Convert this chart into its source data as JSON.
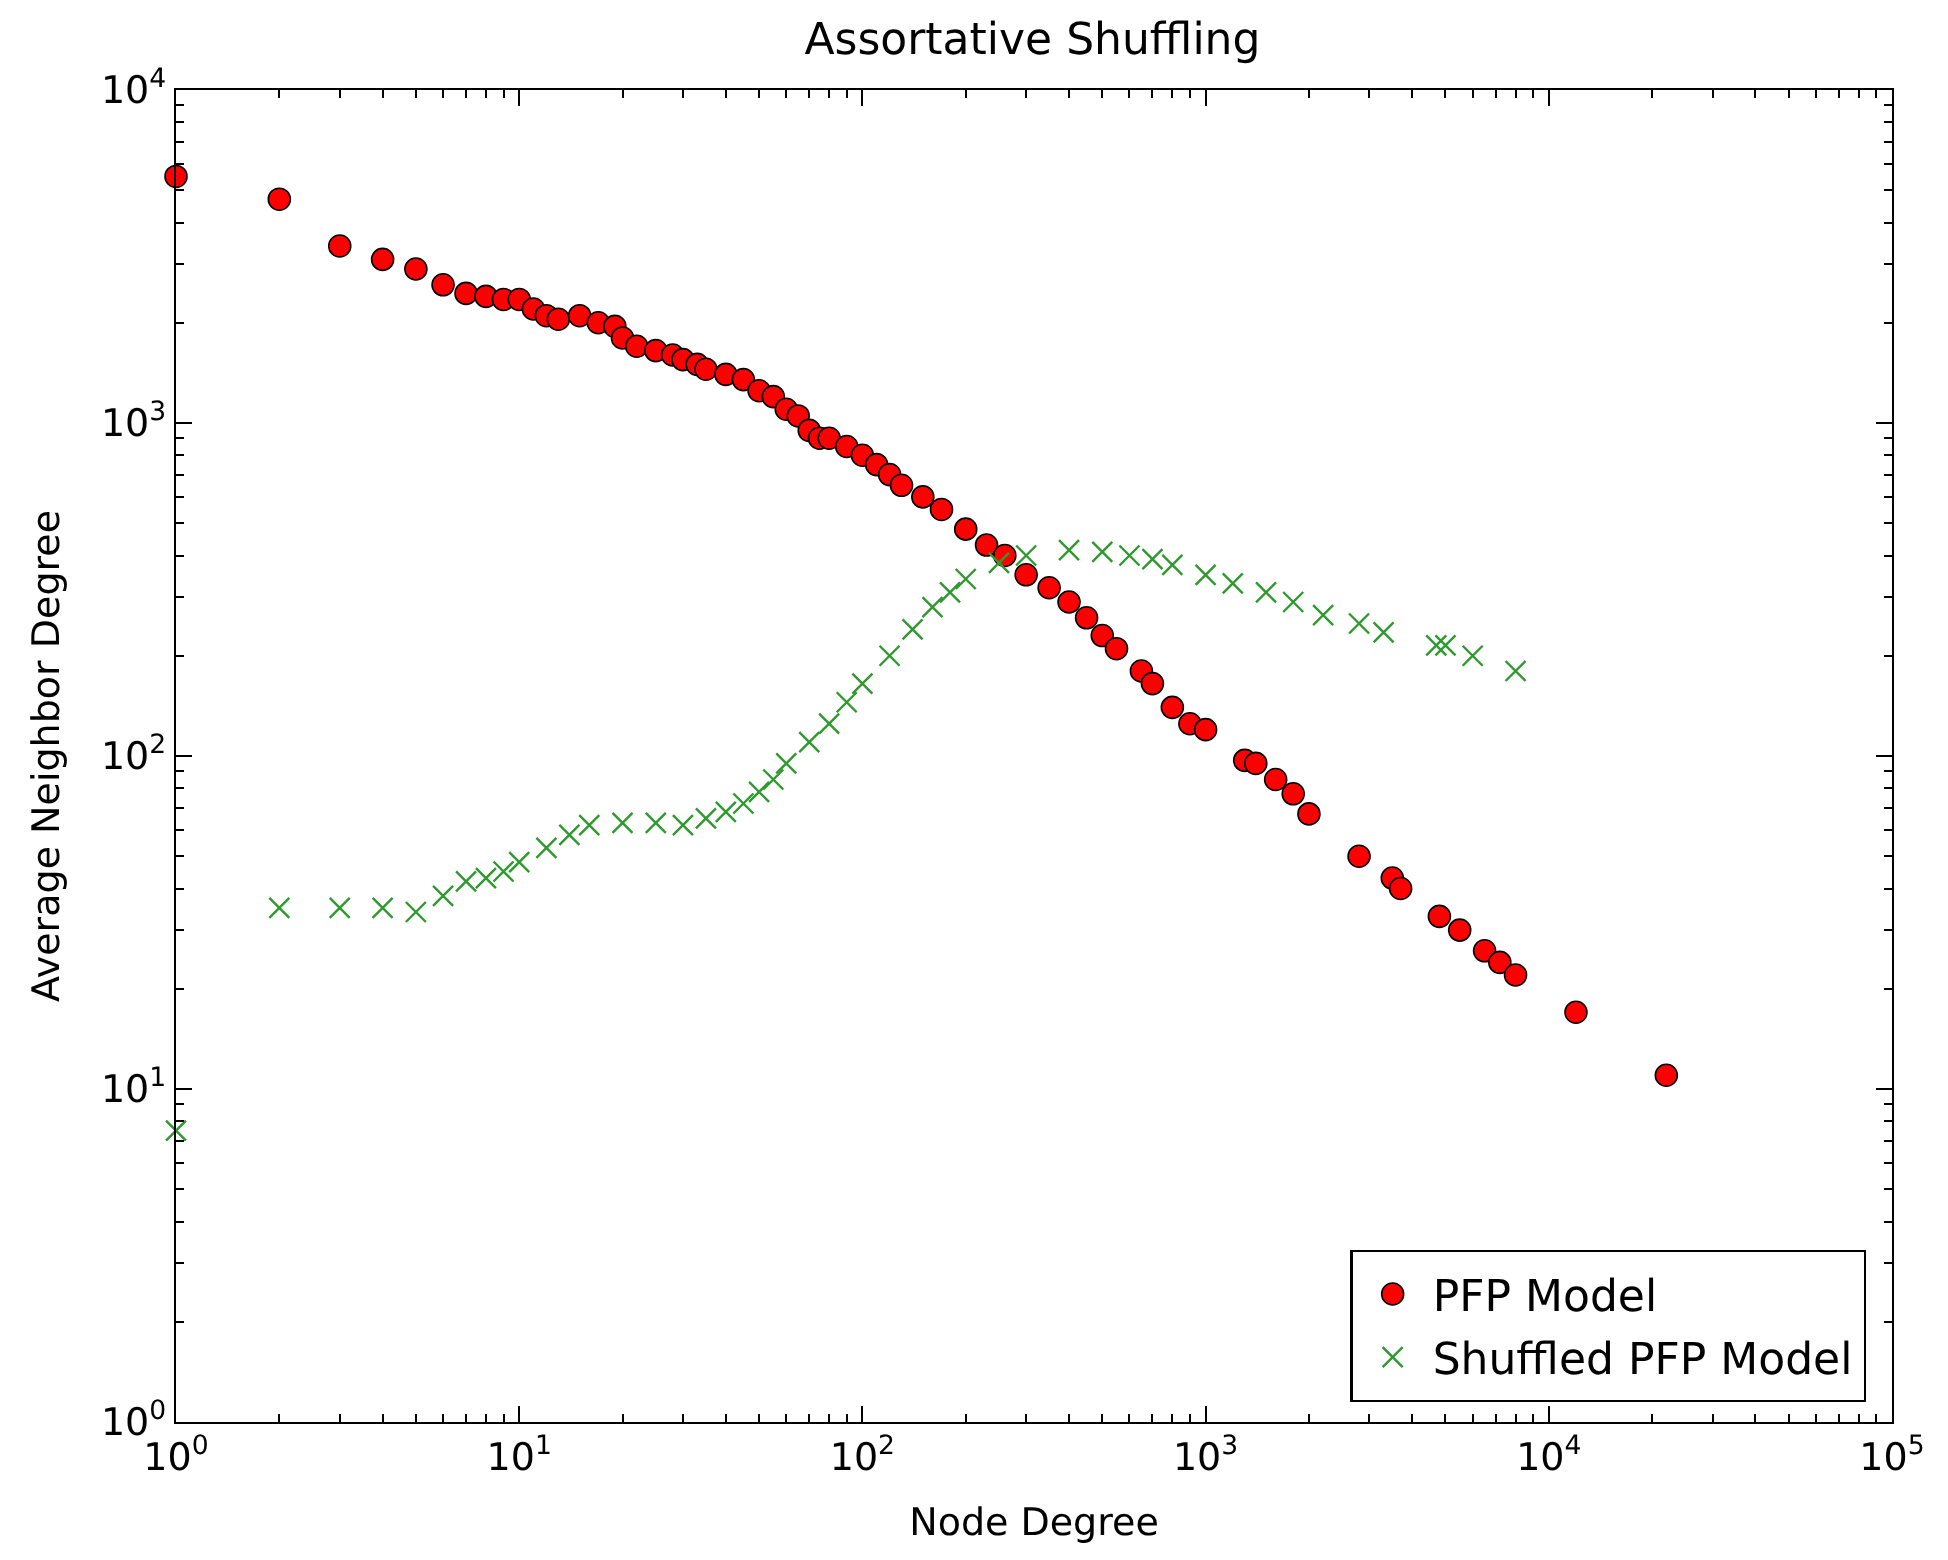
{
  "chart_data": {
    "type": "scatter",
    "title": "Assortative Shuffling",
    "xlabel": "Node Degree",
    "ylabel": "Average Neighbor Degree",
    "log": "xy",
    "legend": "bottom right",
    "xlim": [
      1,
      100000
    ],
    "ylim": [
      1,
      10000
    ],
    "xticks": [
      {
        "value": 1,
        "label": "10$^{0}$"
      },
      {
        "value": 10,
        "label": "10$^{1}$"
      },
      {
        "value": 100,
        "label": "10$^{2}$"
      },
      {
        "value": 1000,
        "label": "10$^{3}$"
      },
      {
        "value": 10000,
        "label": "10$^{4}$"
      },
      {
        "value": 100000,
        "label": "10$^{5}$"
      }
    ],
    "yticks": [
      {
        "value": 1,
        "label": "10$^{0}$"
      },
      {
        "value": 10,
        "label": "10$^{1}$"
      },
      {
        "value": 100,
        "label": "10$^{2}$"
      },
      {
        "value": 1000,
        "label": "10$^{3}$"
      },
      {
        "value": 10000,
        "label": "10$^{4}$"
      }
    ],
    "series": [
      {
        "name": "PFP Model",
        "color": "#ff0000",
        "marker": "circle",
        "x": [
          1,
          2,
          3,
          4,
          5,
          6,
          7,
          8,
          9,
          10,
          11,
          12,
          13,
          15,
          17,
          19,
          20,
          22,
          25,
          28,
          30,
          33,
          35,
          40,
          45,
          50,
          55,
          60,
          65,
          70,
          75,
          80,
          90,
          100,
          110,
          120,
          130,
          150,
          170,
          200,
          230,
          260,
          300,
          350,
          400,
          450,
          500,
          550,
          650,
          700,
          800,
          900,
          1000,
          1300,
          1400,
          1600,
          1800,
          2000,
          2800,
          3500,
          3700,
          4800,
          5500,
          6500,
          7200,
          8000,
          12000,
          22000
        ],
        "values": [
          5500,
          4700,
          3400,
          3100,
          2900,
          2600,
          2450,
          2400,
          2350,
          2350,
          2200,
          2100,
          2050,
          2100,
          2000,
          1950,
          1800,
          1700,
          1650,
          1600,
          1550,
          1500,
          1450,
          1400,
          1350,
          1250,
          1200,
          1100,
          1050,
          950,
          900,
          900,
          850,
          800,
          750,
          700,
          650,
          600,
          550,
          480,
          430,
          400,
          350,
          320,
          290,
          260,
          230,
          210,
          180,
          165,
          140,
          125,
          120,
          97,
          95,
          85,
          77,
          67,
          50,
          43,
          40,
          33,
          30,
          26,
          24,
          22,
          17,
          11
        ]
      },
      {
        "name": "Shuffled PFP Model",
        "color": "#2e9a2e",
        "marker": "cross",
        "x": [
          1,
          2,
          3,
          4,
          5,
          6,
          7,
          8,
          9,
          10,
          12,
          14,
          16,
          20,
          25,
          30,
          35,
          40,
          45,
          50,
          55,
          60,
          70,
          80,
          90,
          100,
          120,
          140,
          160,
          180,
          200,
          250,
          300,
          400,
          500,
          600,
          700,
          800,
          1000,
          1200,
          1500,
          1800,
          2200,
          2800,
          3300,
          4700,
          5000,
          6000,
          8000
        ],
        "values": [
          7.5,
          35,
          35,
          35,
          34,
          38,
          42,
          43,
          45,
          48,
          53,
          58,
          62,
          63,
          63,
          62,
          65,
          68,
          72,
          78,
          85,
          95,
          110,
          125,
          145,
          165,
          200,
          240,
          280,
          310,
          340,
          380,
          400,
          415,
          410,
          400,
          390,
          375,
          350,
          330,
          310,
          290,
          265,
          250,
          235,
          215,
          215,
          200,
          180
        ]
      }
    ]
  }
}
